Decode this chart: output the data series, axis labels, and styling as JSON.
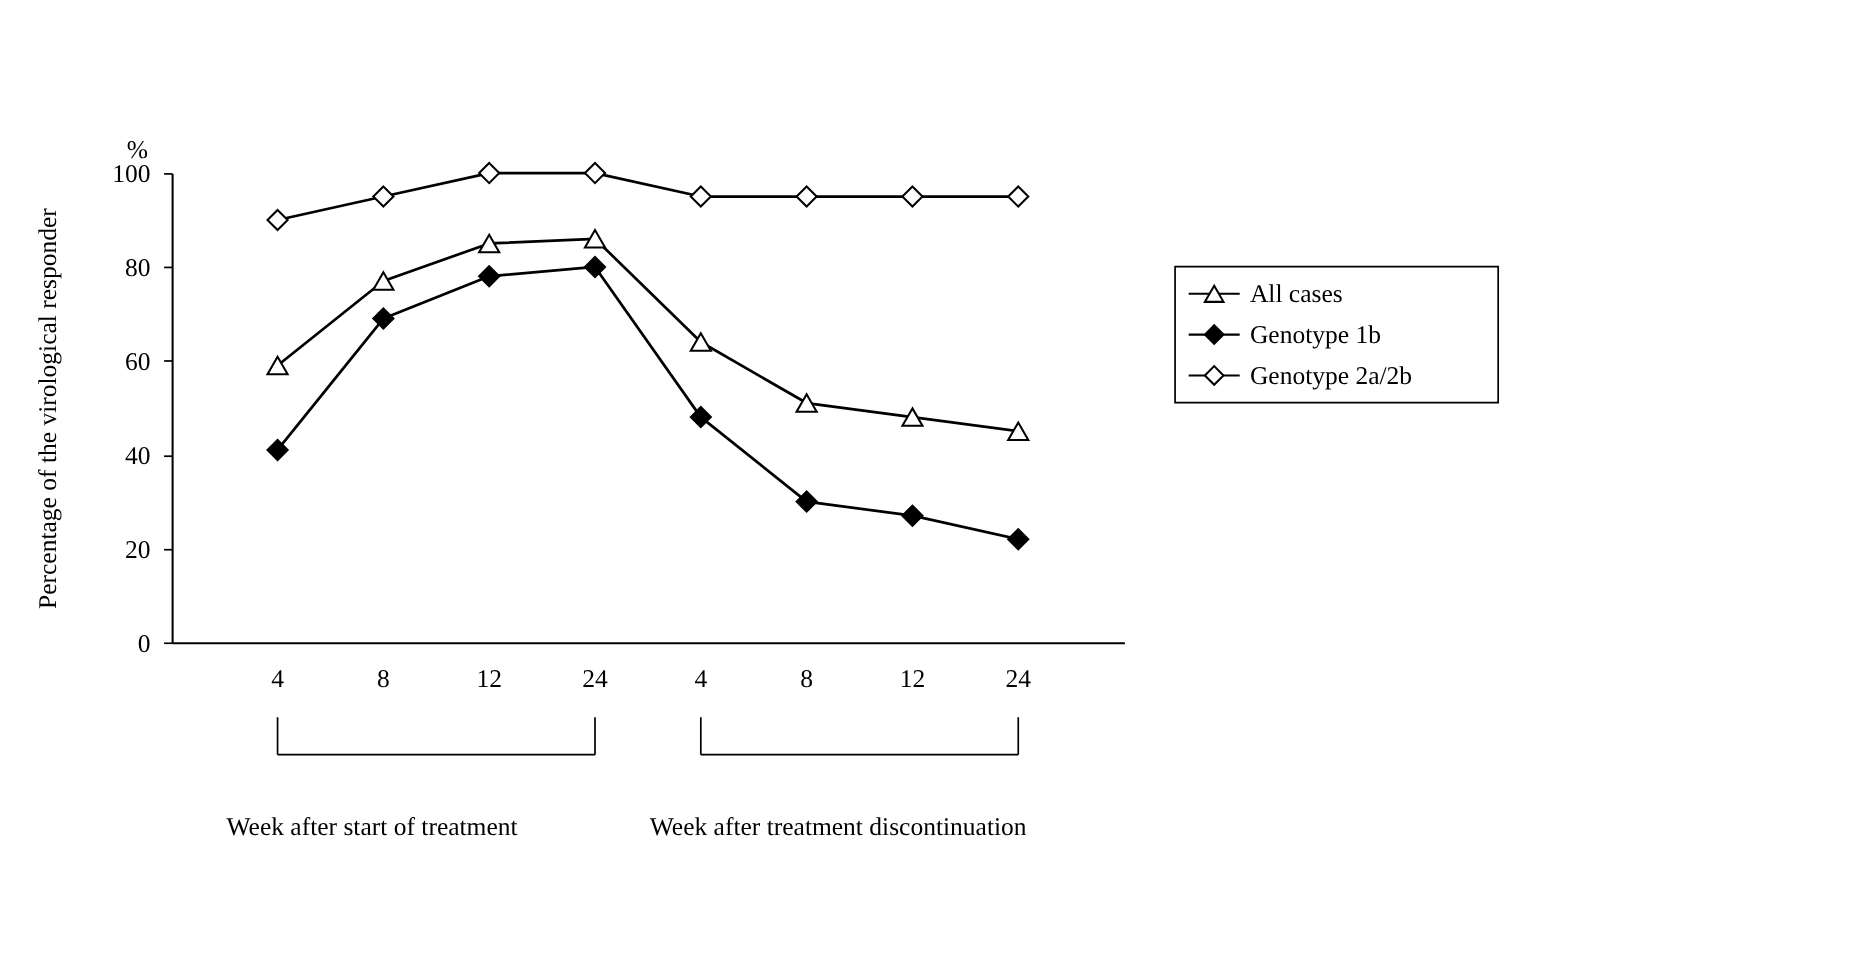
{
  "chart_data": {
    "type": "line",
    "ylabel": "Percentage of the virological responder",
    "categories": [
      "4",
      "8",
      "12",
      "24",
      "4",
      "8",
      "12",
      "24"
    ],
    "series": [
      {
        "name": "All cases",
        "color": "#ffffff",
        "marker": "triangle",
        "values": [
          59,
          77,
          85,
          86,
          64,
          51,
          48,
          45
        ]
      },
      {
        "name": "Genotype 1b",
        "color": "#000000",
        "marker": "diamond",
        "values": [
          41,
          69,
          78,
          80,
          48,
          30,
          27,
          22
        ]
      },
      {
        "name": "Genotype 2a/2b",
        "color": "#ffffff",
        "marker": "diamond",
        "values": [
          90,
          95,
          100,
          100,
          95,
          95,
          95,
          95
        ]
      }
    ],
    "ylim": [
      0,
      100
    ],
    "yticks": [
      0,
      20,
      40,
      60,
      80,
      100
    ],
    "grid": false,
    "legend": "right",
    "line_style": "solid",
    "annotations": [
      "%",
      "Week after start of treatment",
      "Week after treatment discontinuation"
    ]
  }
}
